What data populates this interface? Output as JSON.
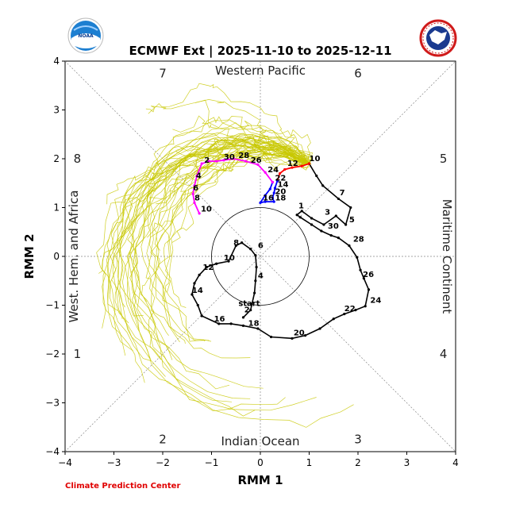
{
  "chart_data": {
    "type": "line",
    "title": "ECMWF Ext | 2025-11-10 to 2025-12-11",
    "xlabel": "RMM 1",
    "ylabel": "RMM 2",
    "xlim": [
      -4,
      4
    ],
    "ylim": [
      -4,
      4
    ],
    "xticks": [
      "−4",
      "−3",
      "−2",
      "−1",
      "0",
      "1",
      "2",
      "3",
      "4"
    ],
    "yticks": [
      "−4",
      "−3",
      "−2",
      "−1",
      "0",
      "1",
      "2",
      "3",
      "4"
    ],
    "grid": false,
    "unit_circle_radius": 1,
    "regions": {
      "top": "Western Pacific",
      "bottom": "Indian Ocean",
      "left": "West. Hem. and Africa",
      "right": "Maritime Continent"
    },
    "phases": [
      {
        "label": "1",
        "x": -3.75,
        "y": -2.0
      },
      {
        "label": "2",
        "x": -2.0,
        "y": -3.75
      },
      {
        "label": "3",
        "x": 2.0,
        "y": -3.75
      },
      {
        "label": "4",
        "x": 3.75,
        "y": -2.0
      },
      {
        "label": "5",
        "x": 3.75,
        "y": 2.0
      },
      {
        "label": "6",
        "x": 2.0,
        "y": 3.75
      },
      {
        "label": "7",
        "x": -2.0,
        "y": 3.75
      },
      {
        "label": "8",
        "x": -3.75,
        "y": 2.0
      }
    ],
    "observed": {
      "start_label": "start",
      "points": [
        [
          -0.35,
          -1.25
        ],
        [
          -0.2,
          -1.1
        ],
        [
          -0.12,
          -0.75
        ],
        [
          -0.1,
          -0.5
        ],
        [
          -0.08,
          -0.22
        ],
        [
          -0.1,
          0.02
        ],
        [
          -0.2,
          0.15
        ],
        [
          -0.38,
          0.28
        ],
        [
          -0.5,
          0.22
        ],
        [
          -0.65,
          -0.1
        ],
        [
          -0.9,
          -0.15
        ],
        [
          -1.1,
          -0.22
        ],
        [
          -1.25,
          -0.38
        ],
        [
          -1.35,
          -0.55
        ],
        [
          -1.4,
          -0.78
        ],
        [
          -1.28,
          -1.0
        ],
        [
          -1.2,
          -1.22
        ],
        [
          -0.85,
          -1.38
        ],
        [
          -0.6,
          -1.38
        ],
        [
          -0.35,
          -1.42
        ],
        [
          -0.05,
          -1.48
        ],
        [
          0.22,
          -1.65
        ],
        [
          0.65,
          -1.68
        ],
        [
          0.92,
          -1.62
        ],
        [
          1.22,
          -1.48
        ],
        [
          1.5,
          -1.28
        ],
        [
          1.72,
          -1.18
        ],
        [
          1.95,
          -1.1
        ],
        [
          2.15,
          -1.02
        ],
        [
          2.22,
          -0.68
        ],
        [
          2.12,
          -0.45
        ],
        [
          2.05,
          -0.28
        ],
        [
          1.98,
          -0.02
        ],
        [
          1.82,
          0.22
        ],
        [
          1.6,
          0.38
        ],
        [
          1.45,
          0.43
        ],
        [
          1.25,
          0.52
        ],
        [
          1.05,
          0.65
        ],
        [
          0.82,
          0.8
        ],
        [
          0.75,
          0.85
        ],
        [
          0.85,
          0.93
        ],
        [
          1.05,
          0.78
        ],
        [
          1.3,
          0.65
        ],
        [
          1.55,
          0.83
        ],
        [
          1.75,
          0.65
        ],
        [
          1.85,
          1.0
        ],
        [
          1.6,
          1.18
        ],
        [
          1.28,
          1.45
        ],
        [
          1.15,
          1.65
        ],
        [
          1.0,
          1.9
        ]
      ],
      "labels": [
        {
          "text": "start",
          "x": -0.45,
          "y": -1.02
        },
        {
          "text": "2",
          "x": -0.33,
          "y": -1.15
        },
        {
          "text": "4",
          "x": -0.05,
          "y": -0.45
        },
        {
          "text": "6",
          "x": -0.05,
          "y": 0.17
        },
        {
          "text": "8",
          "x": -0.55,
          "y": 0.23
        },
        {
          "text": "10",
          "x": -0.75,
          "y": -0.08
        },
        {
          "text": "12",
          "x": -1.18,
          "y": -0.28
        },
        {
          "text": "14",
          "x": -1.4,
          "y": -0.75
        },
        {
          "text": "16",
          "x": -0.95,
          "y": -1.33
        },
        {
          "text": "18",
          "x": -0.25,
          "y": -1.42
        },
        {
          "text": "20",
          "x": 0.68,
          "y": -1.62
        },
        {
          "text": "22",
          "x": 1.72,
          "y": -1.12
        },
        {
          "text": "24",
          "x": 2.25,
          "y": -0.95
        },
        {
          "text": "26",
          "x": 2.1,
          "y": -0.42
        },
        {
          "text": "28",
          "x": 1.9,
          "y": 0.3
        },
        {
          "text": "30",
          "x": 1.38,
          "y": 0.57
        },
        {
          "text": "3",
          "x": 1.32,
          "y": 0.85
        },
        {
          "text": "5",
          "x": 1.82,
          "y": 0.7
        },
        {
          "text": "7",
          "x": 1.62,
          "y": 1.25
        },
        {
          "text": "1",
          "x": 0.78,
          "y": 0.98
        },
        {
          "text": "10",
          "x": 1.0,
          "y": 1.95
        }
      ]
    },
    "forecast_mean": {
      "points": [
        [
          1.0,
          1.9
        ],
        [
          0.85,
          1.85
        ],
        [
          0.65,
          1.82
        ],
        [
          0.5,
          1.78
        ],
        [
          0.4,
          1.7
        ],
        [
          0.35,
          1.55
        ],
        [
          0.3,
          1.4
        ],
        [
          0.28,
          1.3
        ],
        [
          0.25,
          1.2
        ],
        [
          0.28,
          1.12
        ],
        [
          0.1,
          1.12
        ],
        [
          0.0,
          1.1
        ],
        [
          0.1,
          1.25
        ],
        [
          0.2,
          1.38
        ],
        [
          0.25,
          1.52
        ],
        [
          0.1,
          1.72
        ],
        [
          -0.05,
          1.88
        ],
        [
          -0.3,
          1.95
        ],
        [
          -0.55,
          2.0
        ],
        [
          -0.75,
          1.97
        ],
        [
          -0.9,
          1.95
        ],
        [
          -1.05,
          1.95
        ],
        [
          -1.2,
          1.9
        ],
        [
          -1.3,
          1.65
        ],
        [
          -1.35,
          1.45
        ],
        [
          -1.38,
          1.28
        ],
        [
          -1.35,
          1.1
        ],
        [
          -1.25,
          0.88
        ]
      ],
      "segment_colors": [
        "#ff0000",
        "#0000ff",
        "#ff00ff"
      ],
      "labels": [
        {
          "text": "12",
          "x": 0.55,
          "y": 1.85
        },
        {
          "text": "14",
          "x": 0.35,
          "y": 1.42
        },
        {
          "text": "16",
          "x": 0.05,
          "y": 1.15
        },
        {
          "text": "18",
          "x": 0.3,
          "y": 1.15
        },
        {
          "text": "20",
          "x": 0.3,
          "y": 1.28
        },
        {
          "text": "22",
          "x": 0.3,
          "y": 1.55
        },
        {
          "text": "24",
          "x": 0.15,
          "y": 1.72
        },
        {
          "text": "26",
          "x": -0.2,
          "y": 1.92
        },
        {
          "text": "28",
          "x": -0.45,
          "y": 2.02
        },
        {
          "text": "30",
          "x": -0.75,
          "y": 1.98
        },
        {
          "text": "2",
          "x": -1.15,
          "y": 1.92
        },
        {
          "text": "4",
          "x": -1.32,
          "y": 1.6
        },
        {
          "text": "6",
          "x": -1.38,
          "y": 1.35
        },
        {
          "text": "8",
          "x": -1.35,
          "y": 1.15
        },
        {
          "text": "10",
          "x": -1.22,
          "y": 0.92
        }
      ]
    },
    "ensemble": {
      "color": "#c8c800",
      "member_count": 51
    },
    "colors": {
      "observed": "#000000",
      "ensemble": "#c8c800",
      "credit": "#e00000"
    }
  },
  "credit": "Climate Prediction Center",
  "logos": {
    "left": "noaa-logo",
    "right": "nws-logo"
  }
}
